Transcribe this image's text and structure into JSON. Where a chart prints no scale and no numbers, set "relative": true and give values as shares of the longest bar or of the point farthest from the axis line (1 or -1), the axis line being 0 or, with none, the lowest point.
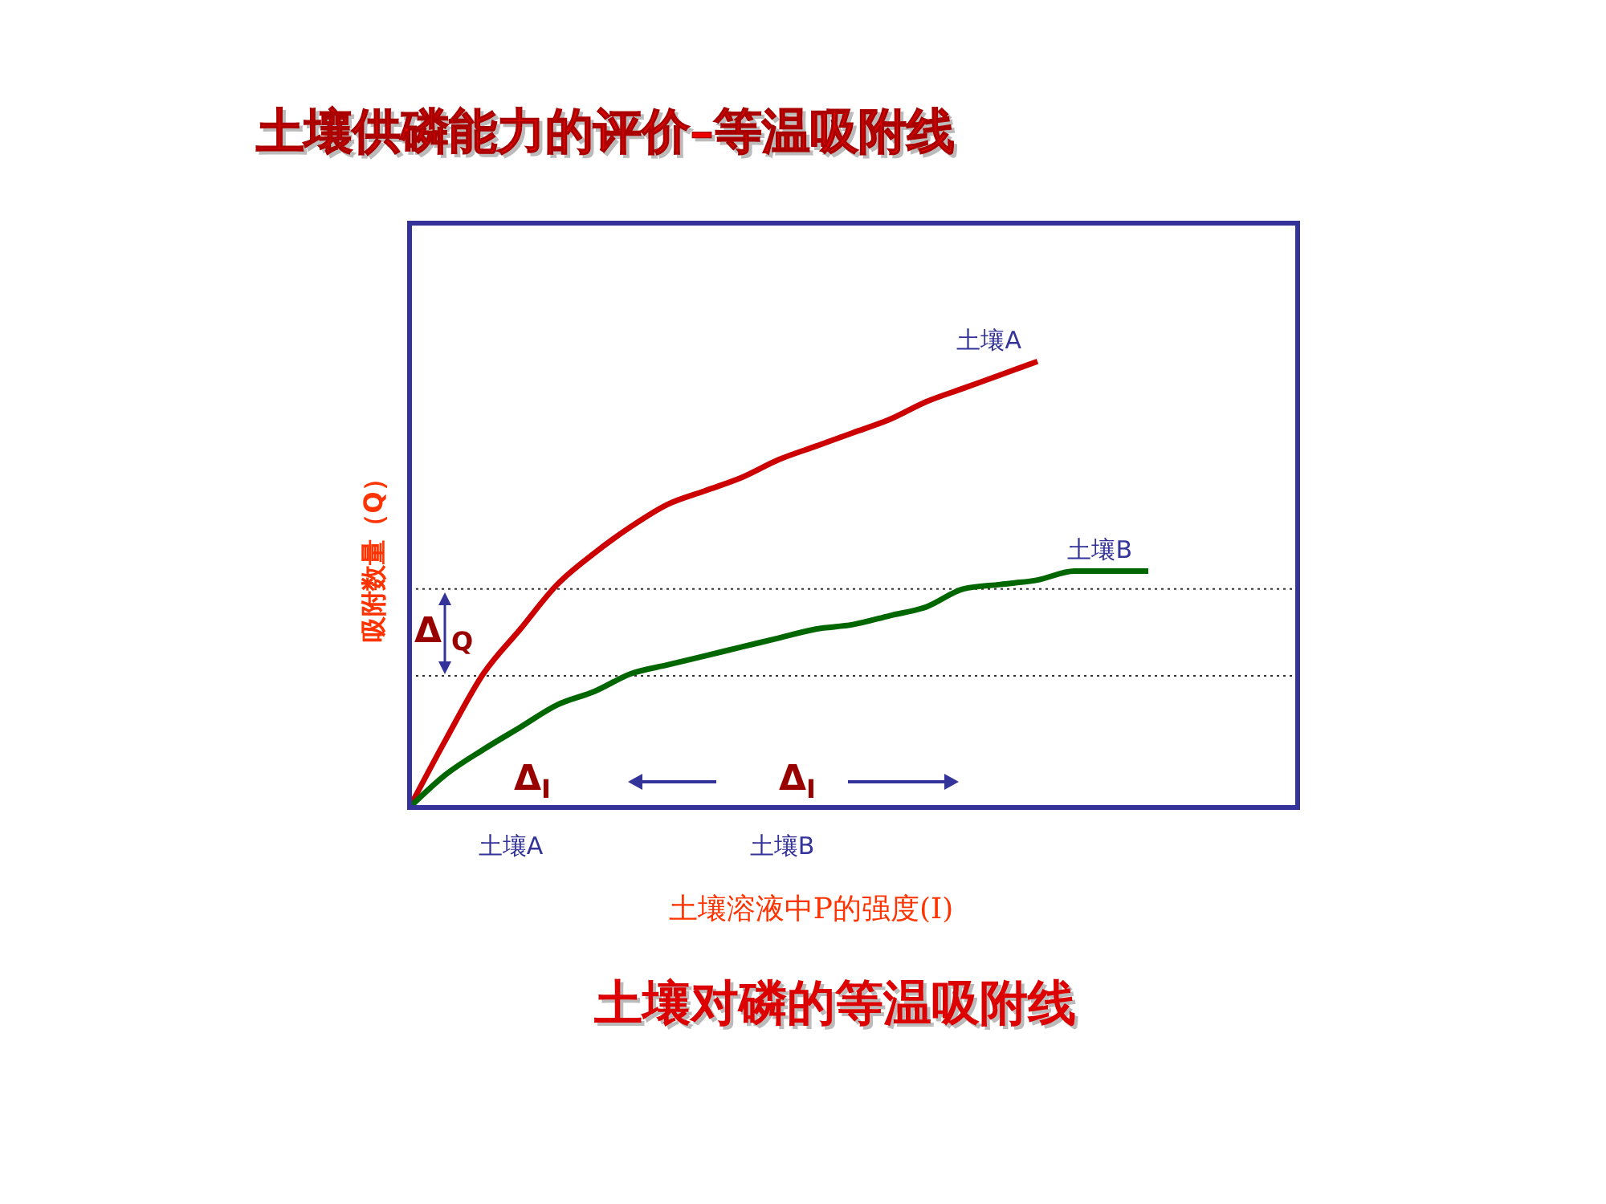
{
  "chart_data": {
    "type": "line",
    "relative": true,
    "title": "土壤供磷能力的评价–等温吸附线",
    "xlabel": "土壤溶液中P的强度(I)",
    "ylabel": "吸附数量（Q）",
    "categories": [
      null,
      null,
      null,
      null,
      null,
      null,
      null,
      null,
      null,
      null,
      null,
      null,
      null,
      null,
      null,
      null,
      null,
      null,
      null,
      null,
      null,
      null,
      null,
      null,
      null
    ],
    "series": [
      {
        "name": "土壤A",
        "color": "#cc0000",
        "values": [
          0,
          0.155,
          0.3,
          0.4,
          0.5,
          0.57,
          0.63,
          0.68,
          0.71,
          0.74,
          0.78,
          0.81,
          0.84,
          0.87,
          0.91,
          0.94,
          0.97,
          1.0,
          null,
          null,
          null,
          null,
          null,
          null,
          null
        ]
      },
      {
        "name": "土壤B",
        "color": "#006600",
        "values": [
          0,
          0.075,
          0.13,
          0.18,
          0.23,
          0.26,
          0.3,
          0.32,
          0.34,
          0.36,
          0.38,
          0.4,
          0.41,
          0.43,
          0.45,
          0.49,
          0.5,
          0.51,
          0.53,
          0.53,
          0.53,
          null,
          null,
          null,
          null
        ]
      }
    ],
    "ref_lines": [
      {
        "axis": "y",
        "value": 0.49,
        "line_style": "dotted"
      },
      {
        "axis": "y",
        "value": 0.295,
        "line_style": "dotted"
      }
    ],
    "annotations": [
      "土壤A",
      "土壤B",
      "ΔQ",
      "ΔI",
      "ΔI",
      "土壤对磷的等温吸附线"
    ],
    "legend": false,
    "line_style": "solid",
    "marker": "none"
  }
}
